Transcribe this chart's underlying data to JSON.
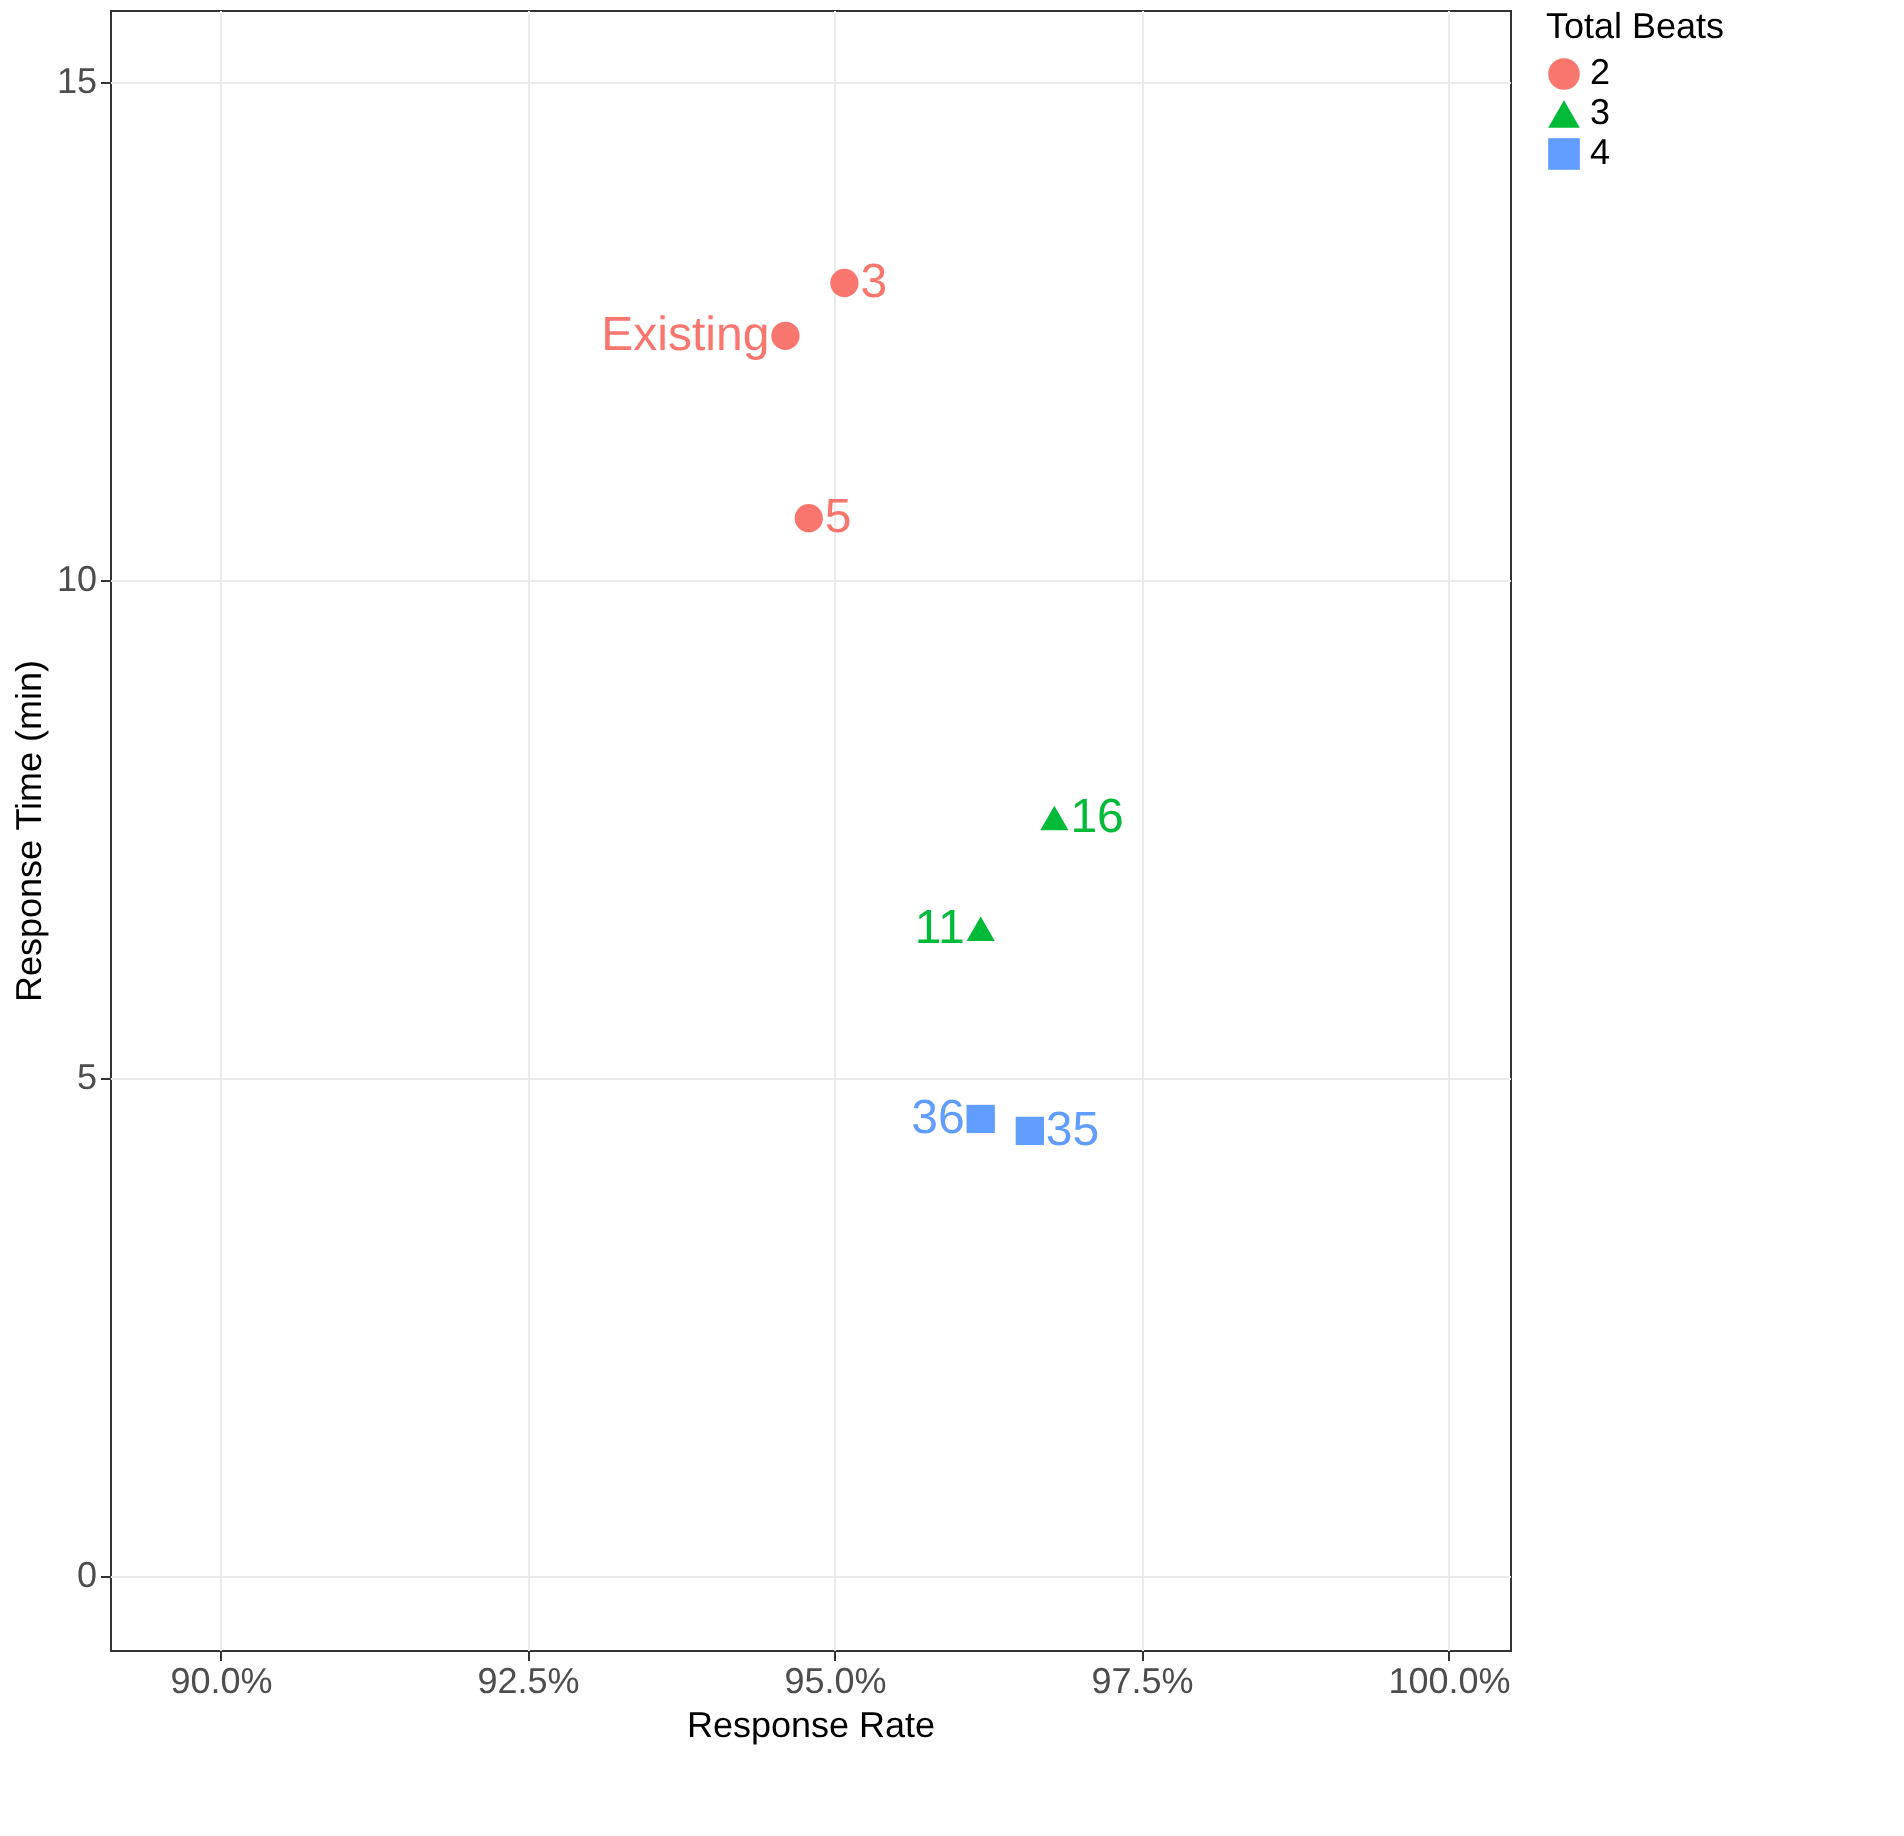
{
  "chart_data": {
    "type": "scatter",
    "xlabel": "Response Rate",
    "ylabel": "Response Time (min)",
    "legend_title": "Total Beats",
    "legend": "right",
    "grid": true,
    "xlim": [
      89.1,
      100.5
    ],
    "ylim": [
      -0.74,
      15.72
    ],
    "xticks": [
      {
        "value": 90,
        "label": "90.0%"
      },
      {
        "value": 92.5,
        "label": "92.5%"
      },
      {
        "value": 95,
        "label": "95.0%"
      },
      {
        "value": 97.5,
        "label": "97.5%"
      },
      {
        "value": 100,
        "label": "100.0%"
      }
    ],
    "yticks": [
      0,
      5,
      10,
      15
    ],
    "series": [
      {
        "name": "2",
        "color": "#f8766d",
        "marker": "circle",
        "x": [
          94.6,
          95.08,
          94.79
        ],
        "values": [
          12.45,
          12.98,
          10.62
        ]
      },
      {
        "name": "3",
        "color": "#00ba38",
        "marker": "triangle",
        "x": [
          96.79,
          96.19
        ],
        "values": [
          7.61,
          6.5
        ]
      },
      {
        "name": "4",
        "color": "#619cff",
        "marker": "square",
        "x": [
          96.19,
          96.59
        ],
        "values": [
          4.59,
          4.47
        ]
      }
    ],
    "annotations": [
      {
        "text": "Existing",
        "x": 94.6,
        "y": 12.45
      },
      {
        "text": "3",
        "x": 95.08,
        "y": 12.98
      },
      {
        "text": "5",
        "x": 94.79,
        "y": 10.62
      },
      {
        "text": "16",
        "x": 96.79,
        "y": 7.61
      },
      {
        "text": "11",
        "x": 96.19,
        "y": 6.5
      },
      {
        "text": "36",
        "x": 96.19,
        "y": 4.59
      },
      {
        "text": "35",
        "x": 96.59,
        "y": 4.47
      }
    ]
  }
}
